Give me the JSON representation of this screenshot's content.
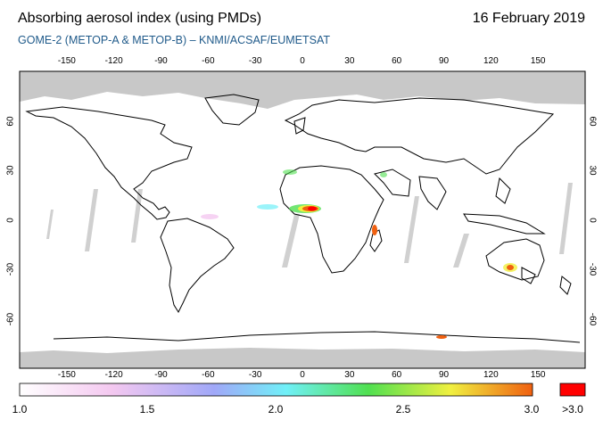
{
  "header": {
    "title": "Absorbing aerosol index (using PMDs)",
    "date": "16 February 2019",
    "subtitle": "GOME-2 (METOP-A & METOP-B)  –  KNMI/ACSAF/EUMETSAT"
  },
  "map": {
    "longitude_ticks": [
      "-150",
      "-120",
      "-90",
      "-60",
      "-30",
      "0",
      "30",
      "60",
      "90",
      "120",
      "150"
    ],
    "latitude_ticks": [
      "60",
      "30",
      "0",
      "-30",
      "-60"
    ],
    "lon_range": [
      -180,
      180
    ],
    "lat_range": [
      -90,
      90
    ],
    "no_data_color": "#c8c8c8",
    "land_outline_color": "#000000",
    "high_aerosol_regions": [
      "Central Africa / Gulf of Guinea",
      "Southeast Australia",
      "Madagascar"
    ]
  },
  "colorbar": {
    "labels": [
      "1.0",
      "1.5",
      "2.0",
      "2.5",
      "3.0"
    ],
    "over_label": ">3.0",
    "min": 1.0,
    "max": 3.0,
    "colors": [
      "#ffffff",
      "#f4c8f0",
      "#a0a8f8",
      "#70f0f8",
      "#50e050",
      "#f0f040",
      "#f06010"
    ],
    "over_color": "#ff0000"
  }
}
